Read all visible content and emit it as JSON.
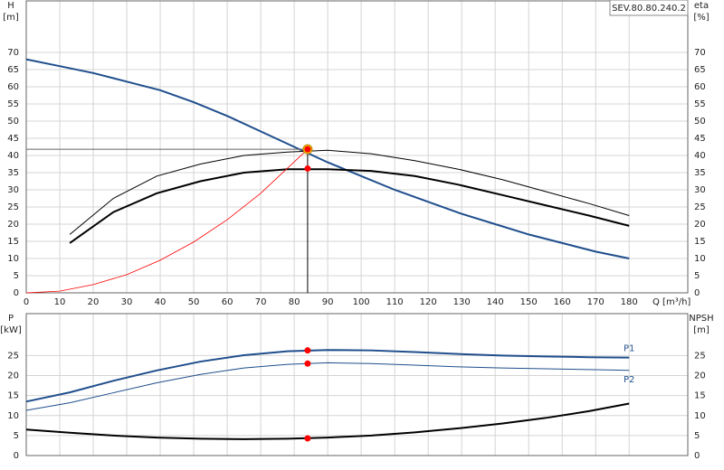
{
  "chart_data": [
    {
      "type": "line",
      "annotation": "SEV.80.80.240.2",
      "ylabel": "H",
      "yunit": "[m]",
      "y2label": "eta",
      "y2unit": "[%]",
      "xlabel": "Q [m³/h]",
      "xlim": [
        0,
        197.5
      ],
      "xticks": [
        0,
        10,
        20,
        30,
        40,
        50,
        60,
        70,
        80,
        90,
        100,
        110,
        120,
        130,
        140,
        150,
        160,
        170,
        180
      ],
      "xtick_labels": true,
      "ylim": [
        0,
        85
      ],
      "yticks": [
        0,
        5,
        10,
        15,
        20,
        25,
        30,
        35,
        40,
        45,
        50,
        55,
        60,
        65,
        70
      ],
      "y2lim": [
        0,
        85
      ],
      "y2ticks": [
        0,
        5,
        10,
        15,
        20,
        25,
        30,
        35,
        40,
        45,
        50,
        55,
        60,
        65,
        70
      ],
      "grid": true,
      "series": [
        {
          "color": "#1f4e8c",
          "width": 2,
          "x": [
            0,
            10,
            20,
            30,
            40,
            50,
            60,
            70,
            80,
            90,
            100,
            110,
            120,
            130,
            140,
            150,
            160,
            170,
            180
          ],
          "values": [
            68,
            66,
            64,
            61.5,
            59,
            55.5,
            51.5,
            47,
            42.5,
            38,
            34,
            30,
            26.5,
            23,
            20,
            17,
            14.5,
            12,
            10
          ]
        },
        {
          "color": "#000000",
          "width": 2,
          "axis": "y2",
          "x": [
            13,
            26,
            39,
            52,
            65,
            78,
            90,
            103,
            116,
            129,
            142,
            155,
            168,
            180
          ],
          "values": [
            14.5,
            23.5,
            29,
            32.5,
            35,
            36,
            36,
            35.5,
            34,
            31.5,
            28.5,
            25.5,
            22.5,
            19.5
          ]
        },
        {
          "color": "#000000",
          "width": 1,
          "axis": "y2",
          "x": [
            13,
            26,
            39,
            52,
            65,
            78,
            90,
            103,
            116,
            129,
            142,
            155,
            168,
            180
          ],
          "values": [
            17,
            27.5,
            34,
            37.5,
            40,
            41,
            41.5,
            40.5,
            38.5,
            36,
            33,
            29.5,
            26,
            22.5
          ]
        },
        {
          "color": "#ff0000",
          "width": 0.8,
          "x": [
            0,
            10,
            20,
            30,
            40,
            50,
            60,
            70,
            84
          ],
          "values": [
            0,
            0.5,
            2.4,
            5.3,
            9.5,
            14.8,
            21.3,
            29,
            41.8
          ]
        }
      ],
      "markers": [
        {
          "x": 84,
          "y": 41.8,
          "crosshair": true
        },
        {
          "x": 84,
          "y": 36.2,
          "axis": "y2"
        }
      ]
    },
    {
      "type": "line",
      "ylabel": "P",
      "yunit": "[kW]",
      "y2label": "NPSH",
      "y2unit": "[m]",
      "xlim": [
        0,
        197.5
      ],
      "xticks": [
        0,
        10,
        20,
        30,
        40,
        50,
        60,
        70,
        80,
        90,
        100,
        110,
        120,
        130,
        140,
        150,
        160,
        170,
        180
      ],
      "xtick_labels": false,
      "ylim": [
        0,
        35.5
      ],
      "yticks": [
        0,
        5,
        10,
        15,
        20,
        25
      ],
      "y2lim": [
        0,
        35.5
      ],
      "y2ticks": [
        0,
        5,
        10,
        15,
        20,
        25
      ],
      "grid": true,
      "series": [
        {
          "name": "P1",
          "color": "#1f4e8c",
          "width": 2,
          "x": [
            0,
            13,
            26,
            39,
            52,
            65,
            78,
            90,
            103,
            116,
            129,
            142,
            155,
            168,
            180
          ],
          "values": [
            13.5,
            15.8,
            18.7,
            21.3,
            23.5,
            25.1,
            26.1,
            26.4,
            26.3,
            25.9,
            25.4,
            25,
            24.8,
            24.6,
            24.5
          ]
        },
        {
          "name": "P2",
          "color": "#1f4e8c",
          "width": 1,
          "x": [
            0,
            13,
            26,
            39,
            52,
            65,
            78,
            90,
            103,
            116,
            129,
            142,
            155,
            168,
            180
          ],
          "values": [
            11.3,
            13.2,
            15.7,
            18.2,
            20.3,
            21.9,
            22.8,
            23.2,
            23,
            22.6,
            22.2,
            21.9,
            21.7,
            21.5,
            21.3
          ]
        },
        {
          "color": "#000000",
          "width": 2,
          "axis": "y2",
          "x": [
            0,
            13,
            26,
            39,
            52,
            65,
            78,
            90,
            103,
            116,
            129,
            142,
            155,
            168,
            180
          ],
          "values": [
            6.5,
            5.7,
            5,
            4.5,
            4.2,
            4.1,
            4.2,
            4.5,
            5,
            5.8,
            6.8,
            8,
            9.4,
            11.1,
            13
          ]
        }
      ],
      "markers": [
        {
          "x": 84,
          "y": 26.3
        },
        {
          "x": 84,
          "y": 23
        },
        {
          "x": 84,
          "y": 4.3,
          "axis": "y2"
        }
      ]
    }
  ]
}
